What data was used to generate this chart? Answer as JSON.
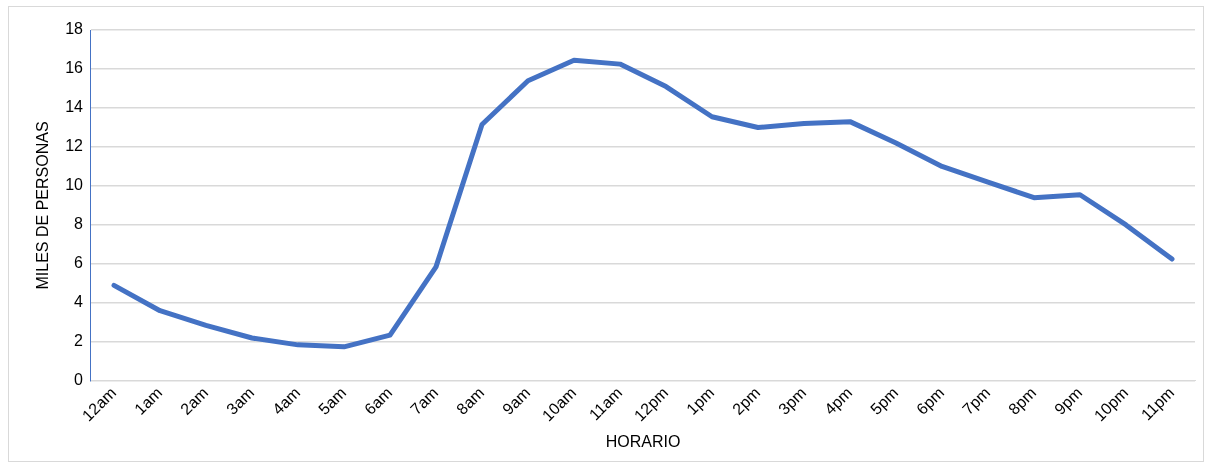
{
  "chart_data": {
    "type": "line",
    "xlabel": "HORARIO",
    "ylabel": "MILES DE PERSONAS",
    "categories": [
      "12am",
      "1am",
      "2am",
      "3am",
      "4am",
      "5am",
      "6am",
      "7am",
      "8am",
      "9am",
      "10am",
      "11am",
      "12pm",
      "1pm",
      "2pm",
      "3pm",
      "4pm",
      "5pm",
      "6pm",
      "7pm",
      "8pm",
      "9pm",
      "10pm",
      "11pm"
    ],
    "series": [
      {
        "color": "#4472c4",
        "values": [
          4.9,
          3.6,
          2.85,
          2.2,
          1.85,
          1.75,
          2.35,
          5.85,
          13.15,
          15.4,
          16.45,
          16.25,
          15.1,
          13.55,
          13.0,
          13.2,
          13.3,
          12.2,
          11.0,
          10.2,
          9.4,
          9.55,
          8.0,
          6.25
        ]
      }
    ],
    "ylim": [
      0,
      18
    ],
    "yticks": [
      0,
      2,
      4,
      6,
      8,
      10,
      12,
      14,
      16,
      18
    ],
    "grid": "y",
    "legend": false,
    "marker": "none",
    "line_style": "solid"
  }
}
